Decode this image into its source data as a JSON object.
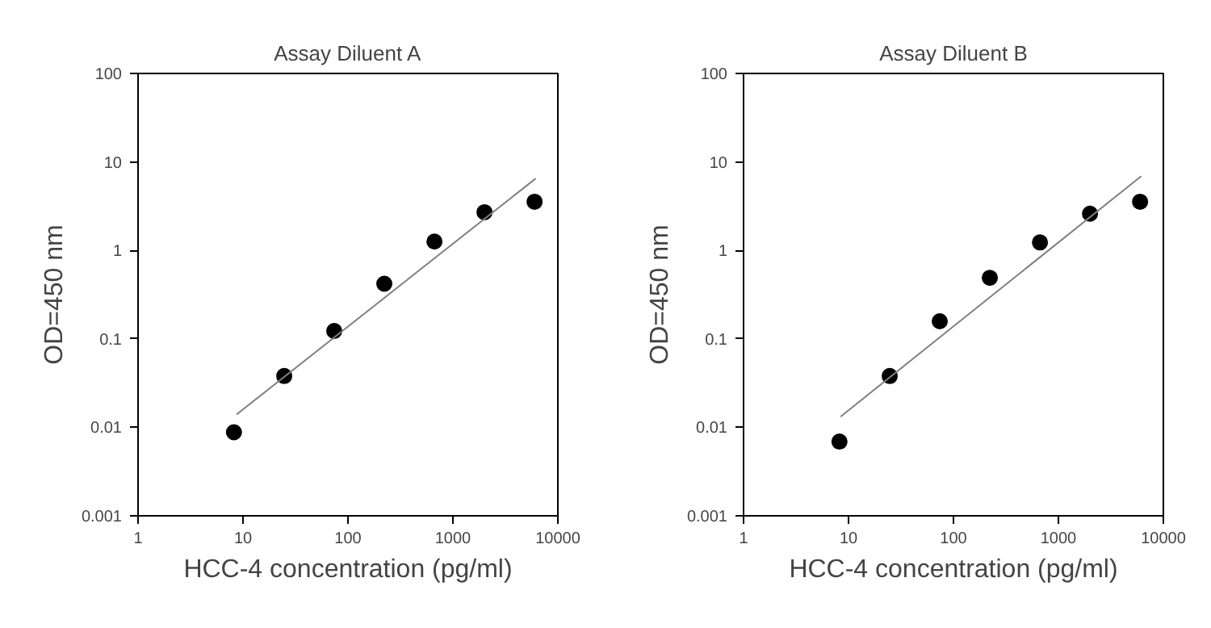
{
  "chart_data": [
    {
      "type": "scatter",
      "title": "Assay Diluent A",
      "xlabel": "HCC-4 concentration (pg/ml)",
      "ylabel": "OD=450 nm",
      "log": "xy",
      "xlim": [
        1,
        10000
      ],
      "ylim": [
        0.001,
        100
      ],
      "xticks": [
        1,
        10,
        100,
        1000,
        10000
      ],
      "yticks": [
        0.001,
        0.01,
        0.1,
        1,
        10,
        100
      ],
      "series": [
        {
          "marker": "circle",
          "color": "#000000",
          "x": [
            8.2,
            24.7,
            74,
            222,
            667,
            2000,
            6000
          ],
          "values": [
            0.0088,
            0.038,
            0.123,
            0.42,
            1.26,
            2.7,
            3.55
          ]
        },
        {
          "type": "line",
          "marker": "none",
          "color": "#808080",
          "x": [
            8.7,
            6150
          ],
          "values": [
            0.014,
            6.5
          ]
        }
      ]
    },
    {
      "type": "scatter",
      "title": "Assay Diluent B",
      "xlabel": "HCC-4 concentration (pg/ml)",
      "ylabel": "OD=450 nm",
      "log": "xy",
      "xlim": [
        1,
        10000
      ],
      "ylim": [
        0.001,
        100
      ],
      "xticks": [
        1,
        10,
        100,
        1000,
        10000
      ],
      "yticks": [
        0.001,
        0.01,
        0.1,
        1,
        10,
        100
      ],
      "series": [
        {
          "marker": "circle",
          "color": "#000000",
          "x": [
            8.2,
            24.7,
            74,
            222,
            667,
            2000,
            6000
          ],
          "values": [
            0.0069,
            0.038,
            0.158,
            0.49,
            1.23,
            2.6,
            3.55
          ]
        },
        {
          "type": "line",
          "marker": "none",
          "color": "#808080",
          "x": [
            8.4,
            6150
          ],
          "values": [
            0.0132,
            6.9
          ]
        }
      ]
    }
  ]
}
